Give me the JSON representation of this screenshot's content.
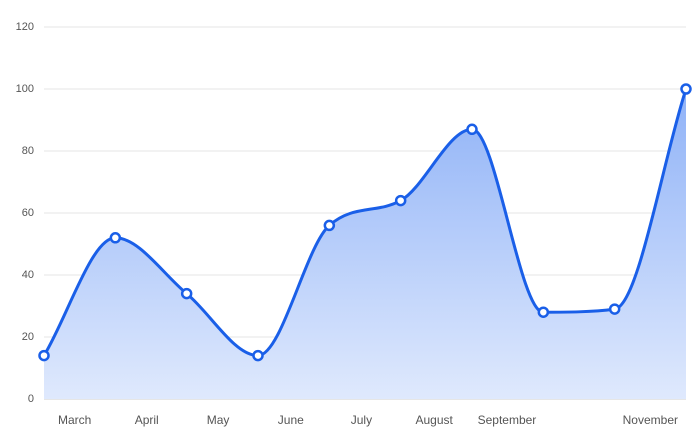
{
  "chart_data": {
    "type": "area",
    "x": [
      0,
      1,
      2,
      3,
      4,
      5,
      6,
      7,
      8,
      9
    ],
    "values": [
      14,
      52,
      34,
      14,
      56,
      64,
      87,
      28,
      29,
      100
    ],
    "color": "#1a5fe8",
    "xlim": [
      0,
      9
    ],
    "xticks": [
      {
        "value": 0.43,
        "label": "March"
      },
      {
        "value": 1.44,
        "label": "April"
      },
      {
        "value": 2.44,
        "label": "May"
      },
      {
        "value": 3.46,
        "label": "June"
      },
      {
        "value": 4.45,
        "label": "July"
      },
      {
        "value": 5.47,
        "label": "August"
      },
      {
        "value": 6.49,
        "label": "September"
      },
      {
        "value": 8.5,
        "label": "November"
      }
    ],
    "ylim": [
      0,
      120
    ],
    "yticks": [
      0,
      20,
      40,
      60,
      80,
      100,
      120
    ],
    "grid": true
  }
}
